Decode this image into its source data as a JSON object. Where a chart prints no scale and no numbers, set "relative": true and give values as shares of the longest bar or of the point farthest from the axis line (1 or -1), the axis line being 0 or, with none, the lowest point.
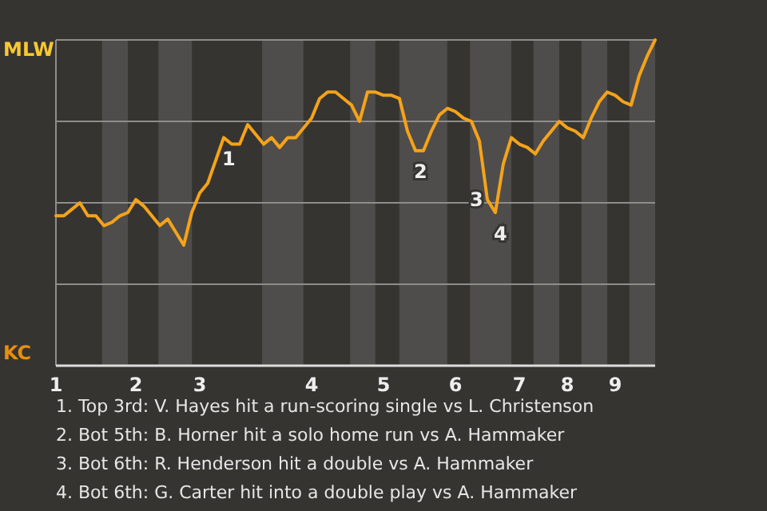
{
  "chart_data": {
    "type": "line",
    "relative": true,
    "categories": [
      "1",
      null,
      null,
      null,
      null,
      null,
      null,
      null,
      null,
      null,
      "2",
      null,
      null,
      null,
      null,
      null,
      null,
      null,
      "3",
      null,
      null,
      null,
      null,
      null,
      null,
      null,
      null,
      null,
      null,
      null,
      null,
      null,
      "4",
      null,
      null,
      null,
      null,
      null,
      null,
      null,
      null,
      "5",
      null,
      null,
      null,
      null,
      null,
      null,
      null,
      null,
      "6",
      null,
      null,
      null,
      null,
      null,
      null,
      null,
      "7",
      null,
      null,
      null,
      null,
      null,
      "8",
      null,
      null,
      null,
      null,
      null,
      "9",
      null,
      null,
      null,
      null,
      null
    ],
    "series": [
      {
        "color": "#f5a31a",
        "values": [
          0.46,
          0.46,
          0.48,
          0.5,
          0.46,
          0.46,
          0.43,
          0.44,
          0.46,
          0.47,
          0.51,
          0.49,
          0.46,
          0.43,
          0.45,
          0.41,
          0.37,
          0.47,
          0.53,
          0.56,
          0.63,
          0.7,
          0.68,
          0.68,
          0.74,
          0.71,
          0.68,
          0.7,
          0.67,
          0.7,
          0.7,
          0.73,
          0.76,
          0.82,
          0.84,
          0.84,
          0.82,
          0.8,
          0.75,
          0.84,
          0.84,
          0.83,
          0.83,
          0.82,
          0.72,
          0.66,
          0.66,
          0.72,
          0.77,
          0.79,
          0.78,
          0.76,
          0.75,
          0.69,
          0.51,
          0.47,
          0.62,
          0.7,
          0.68,
          0.67,
          0.65,
          0.69,
          0.72,
          0.75,
          0.73,
          0.72,
          0.7,
          0.76,
          0.81,
          0.84,
          0.83,
          0.81,
          0.8,
          0.89,
          0.95,
          1.0
        ]
      }
    ],
    "marker": "none",
    "line_style": "solid",
    "ref_lines": [
      {
        "axis": "y",
        "value": 0.25,
        "color": "#8f8d8a"
      },
      {
        "axis": "y",
        "value": 0.5,
        "color": "#8f8d8a"
      },
      {
        "axis": "y",
        "value": 0.75,
        "color": "#8f8d8a"
      }
    ],
    "annotations": [
      "MLW",
      "KC",
      {
        "text": "1",
        "y": 0.7
      },
      {
        "text": "2",
        "y": 0.66
      },
      {
        "text": "3",
        "y": 0.51
      },
      {
        "text": "4",
        "y": 0.47
      },
      "1. Top 3rd: V. Hayes hit a run-scoring single vs L. Christenson",
      "2. Bot 5th: B. Horner hit a solo home run vs A. Hammaker",
      "3. Bot 6th: R. Henderson hit a double vs A. Hammaker",
      "4. Bot 6th: G. Carter hit into a double play vs A. Hammaker"
    ]
  }
}
